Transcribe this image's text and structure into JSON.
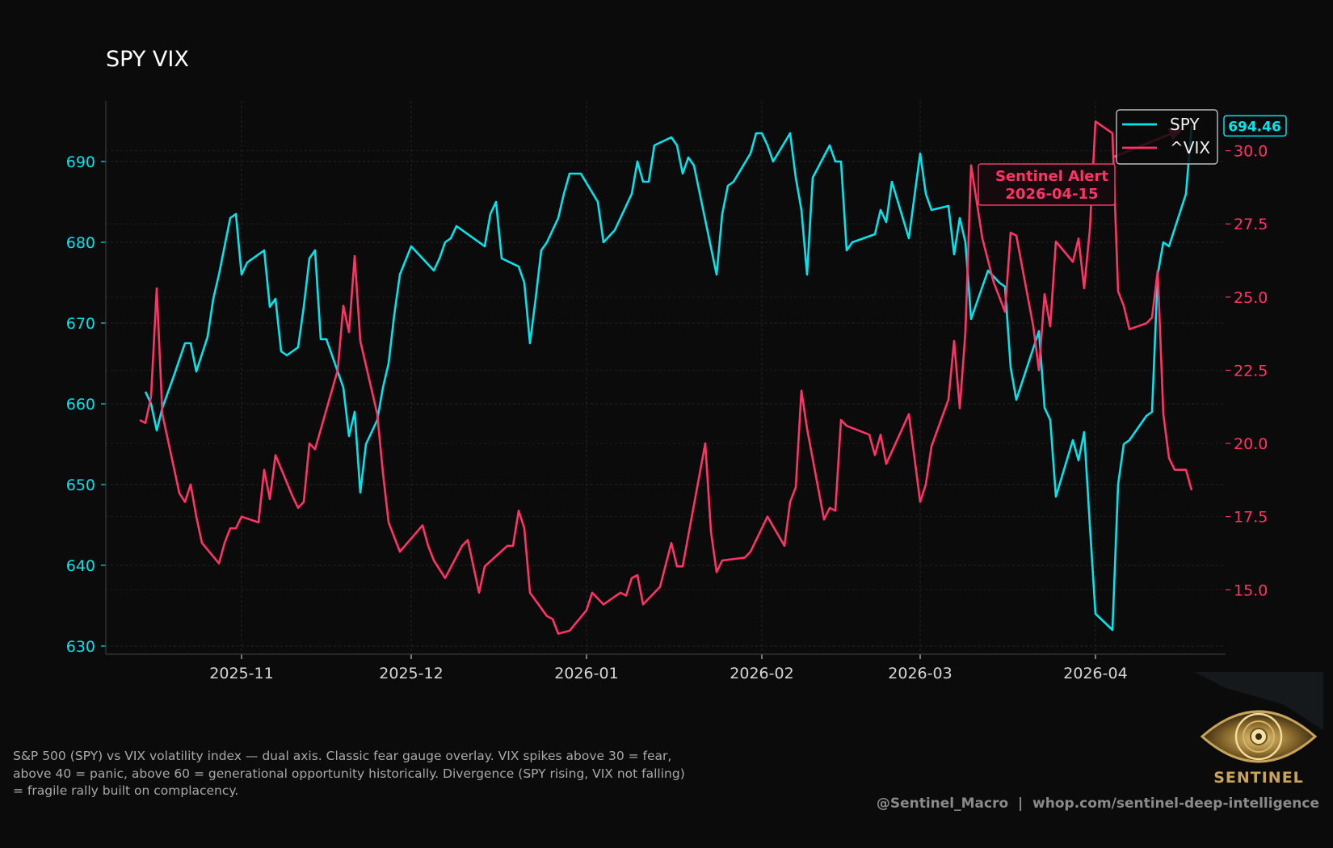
{
  "caption": "S&P 500 (SPY) vs VIX volatility index — dual axis. Classic fear gauge overlay. VIX spikes above 30 = fear, above 40 = panic, above 60 = generational opportunity historically. Divergence (SPY rising, VIX not falling) = fragile rally built on complacency.",
  "attribution": "@Sentinel_Macro  |  whop.com/sentinel-deep-intelligence",
  "logo": {
    "icon": "eye-emblem-icon",
    "wordmark": "SENTINEL"
  },
  "chart_data": {
    "type": "line",
    "title": "SPY VIX",
    "xlabel": "",
    "ylabel_left": "",
    "ylabel_right": "",
    "grid": true,
    "legend_position": "top-right",
    "x_range": [
      "2025-10-08",
      "2026-04-24"
    ],
    "x_ticks": [
      "2025-11",
      "2025-12",
      "2026-01",
      "2026-02",
      "2026-03",
      "2026-04"
    ],
    "y_left": {
      "min": 629,
      "max": 697.5,
      "ticks": [
        630,
        640,
        650,
        660,
        670,
        680,
        690
      ],
      "color": "#00e5ee"
    },
    "y_right": {
      "min": 12.8,
      "max": 31.7,
      "ticks": [
        15.0,
        17.5,
        20.0,
        22.5,
        25.0,
        27.5,
        30.0
      ],
      "color": "#ff3366"
    },
    "series": [
      {
        "name": "SPY",
        "axis": "left",
        "color": "#00e5ee",
        "points": [
          [
            "2025-10-15",
            661.5
          ],
          [
            "2025-10-16",
            660.0
          ],
          [
            "2025-10-17",
            656.7
          ],
          [
            "2025-10-18",
            659.5
          ],
          [
            "2025-10-20",
            663.4
          ],
          [
            "2025-10-22",
            667.5
          ],
          [
            "2025-10-23",
            667.5
          ],
          [
            "2025-10-24",
            664.0
          ],
          [
            "2025-10-26",
            668.3
          ],
          [
            "2025-10-27",
            673.0
          ],
          [
            "2025-10-28",
            676.0
          ],
          [
            "2025-10-29",
            679.5
          ],
          [
            "2025-10-30",
            683.0
          ],
          [
            "2025-10-31",
            683.5
          ],
          [
            "2025-11-01",
            676.0
          ],
          [
            "2025-11-02",
            677.5
          ],
          [
            "2025-11-03",
            678.0
          ],
          [
            "2025-11-05",
            679.0
          ],
          [
            "2025-11-06",
            672.0
          ],
          [
            "2025-11-07",
            673.0
          ],
          [
            "2025-11-08",
            666.5
          ],
          [
            "2025-11-09",
            666.0
          ],
          [
            "2025-11-11",
            667.0
          ],
          [
            "2025-11-12",
            672.0
          ],
          [
            "2025-11-13",
            678.0
          ],
          [
            "2025-11-14",
            679.0
          ],
          [
            "2025-11-15",
            668.0
          ],
          [
            "2025-11-16",
            668.0
          ],
          [
            "2025-11-17",
            666.0
          ],
          [
            "2025-11-19",
            662.0
          ],
          [
            "2025-11-20",
            656.0
          ],
          [
            "2025-11-21",
            659.0
          ],
          [
            "2025-11-22",
            649.0
          ],
          [
            "2025-11-23",
            655.0
          ],
          [
            "2025-11-25",
            658.0
          ],
          [
            "2025-11-26",
            662.0
          ],
          [
            "2025-11-27",
            665.0
          ],
          [
            "2025-11-28",
            671.0
          ],
          [
            "2025-11-29",
            676.0
          ],
          [
            "2025-12-01",
            679.5
          ],
          [
            "2025-12-03",
            678.0
          ],
          [
            "2025-12-05",
            676.5
          ],
          [
            "2025-12-06",
            678.0
          ],
          [
            "2025-12-07",
            680.0
          ],
          [
            "2025-12-08",
            680.5
          ],
          [
            "2025-12-09",
            682.0
          ],
          [
            "2025-12-10",
            681.5
          ],
          [
            "2025-12-14",
            679.5
          ],
          [
            "2025-12-15",
            683.5
          ],
          [
            "2025-12-16",
            685.0
          ],
          [
            "2025-12-17",
            678.0
          ],
          [
            "2025-12-20",
            677.0
          ],
          [
            "2025-12-21",
            675.0
          ],
          [
            "2025-12-22",
            667.5
          ],
          [
            "2025-12-23",
            673.0
          ],
          [
            "2025-12-24",
            679.0
          ],
          [
            "2025-12-25",
            680.0
          ],
          [
            "2025-12-27",
            683.0
          ],
          [
            "2025-12-28",
            686.0
          ],
          [
            "2025-12-29",
            688.5
          ],
          [
            "2025-12-31",
            688.5
          ],
          [
            "2026-01-03",
            685.0
          ],
          [
            "2026-01-04",
            680.0
          ],
          [
            "2026-01-06",
            681.5
          ],
          [
            "2026-01-09",
            686.0
          ],
          [
            "2026-01-10",
            690.0
          ],
          [
            "2026-01-11",
            687.5
          ],
          [
            "2026-01-12",
            687.5
          ],
          [
            "2026-01-13",
            692.0
          ],
          [
            "2026-01-16",
            693.0
          ],
          [
            "2026-01-17",
            692.0
          ],
          [
            "2026-01-18",
            688.5
          ],
          [
            "2026-01-19",
            690.5
          ],
          [
            "2026-01-20",
            689.5
          ],
          [
            "2026-01-24",
            676.0
          ],
          [
            "2026-01-25",
            683.5
          ],
          [
            "2026-01-26",
            687.0
          ],
          [
            "2026-01-27",
            687.5
          ],
          [
            "2026-01-30",
            691.0
          ],
          [
            "2026-01-31",
            693.5
          ],
          [
            "2026-02-01",
            693.5
          ],
          [
            "2026-02-02",
            692.0
          ],
          [
            "2026-02-03",
            690.0
          ],
          [
            "2026-02-06",
            693.5
          ],
          [
            "2026-02-07",
            688.0
          ],
          [
            "2026-02-08",
            684.0
          ],
          [
            "2026-02-09",
            676.0
          ],
          [
            "2026-02-10",
            688.0
          ],
          [
            "2026-02-13",
            692.0
          ],
          [
            "2026-02-14",
            690.0
          ],
          [
            "2026-02-15",
            690.0
          ],
          [
            "2026-02-16",
            679.0
          ],
          [
            "2026-02-17",
            680.0
          ],
          [
            "2026-02-21",
            681.0
          ],
          [
            "2026-02-22",
            684.0
          ],
          [
            "2026-02-23",
            682.5
          ],
          [
            "2026-02-24",
            687.5
          ],
          [
            "2026-02-27",
            680.5
          ],
          [
            "2026-03-01",
            691.0
          ],
          [
            "2026-03-02",
            686.0
          ],
          [
            "2026-03-03",
            684.0
          ],
          [
            "2026-03-06",
            684.5
          ],
          [
            "2026-03-07",
            678.5
          ],
          [
            "2026-03-08",
            683.0
          ],
          [
            "2026-03-09",
            680.0
          ],
          [
            "2026-03-10",
            670.5
          ],
          [
            "2026-03-13",
            676.5
          ],
          [
            "2026-03-15",
            675.0
          ],
          [
            "2026-03-16",
            674.5
          ],
          [
            "2026-03-17",
            664.5
          ],
          [
            "2026-03-18",
            660.5
          ],
          [
            "2026-03-22",
            669.0
          ],
          [
            "2026-03-23",
            659.5
          ],
          [
            "2026-03-24",
            658.0
          ],
          [
            "2026-03-25",
            648.5
          ],
          [
            "2026-03-28",
            655.5
          ],
          [
            "2026-03-29",
            653.0
          ],
          [
            "2026-03-30",
            656.5
          ],
          [
            "2026-03-31",
            645.0
          ],
          [
            "2026-04-01",
            634.0
          ],
          [
            "2026-04-04",
            632.0
          ],
          [
            "2026-04-05",
            650.0
          ],
          [
            "2026-04-06",
            655.0
          ],
          [
            "2026-04-07",
            655.5
          ],
          [
            "2026-04-10",
            658.5
          ],
          [
            "2026-04-11",
            659.0
          ],
          [
            "2026-04-12",
            676.0
          ],
          [
            "2026-04-13",
            680.0
          ],
          [
            "2026-04-14",
            679.5
          ],
          [
            "2026-04-17",
            686.0
          ],
          [
            "2026-04-18",
            694.46
          ]
        ]
      },
      {
        "name": "^VIX",
        "axis": "right",
        "color": "#ff3366",
        "points": [
          [
            "2025-10-14",
            20.8
          ],
          [
            "2025-10-15",
            20.7
          ],
          [
            "2025-10-16",
            21.6
          ],
          [
            "2025-10-17",
            25.3
          ],
          [
            "2025-10-18",
            21.0
          ],
          [
            "2025-10-21",
            18.3
          ],
          [
            "2025-10-22",
            18.0
          ],
          [
            "2025-10-23",
            18.6
          ],
          [
            "2025-10-24",
            17.5
          ],
          [
            "2025-10-25",
            16.6
          ],
          [
            "2025-10-28",
            15.9
          ],
          [
            "2025-10-29",
            16.6
          ],
          [
            "2025-10-30",
            17.1
          ],
          [
            "2025-10-31",
            17.1
          ],
          [
            "2025-11-01",
            17.5
          ],
          [
            "2025-11-04",
            17.3
          ],
          [
            "2025-11-05",
            19.1
          ],
          [
            "2025-11-06",
            18.1
          ],
          [
            "2025-11-07",
            19.6
          ],
          [
            "2025-11-10",
            18.2
          ],
          [
            "2025-11-11",
            17.8
          ],
          [
            "2025-11-12",
            18.0
          ],
          [
            "2025-11-13",
            20.0
          ],
          [
            "2025-11-14",
            19.8
          ],
          [
            "2025-11-18",
            22.5
          ],
          [
            "2025-11-19",
            24.7
          ],
          [
            "2025-11-20",
            23.8
          ],
          [
            "2025-11-21",
            26.4
          ],
          [
            "2025-11-22",
            23.5
          ],
          [
            "2025-11-25",
            21.0
          ],
          [
            "2025-11-26",
            19.0
          ],
          [
            "2025-11-27",
            17.3
          ],
          [
            "2025-11-29",
            16.3
          ],
          [
            "2025-12-03",
            17.2
          ],
          [
            "2025-12-04",
            16.5
          ],
          [
            "2025-12-05",
            16.0
          ],
          [
            "2025-12-07",
            15.4
          ],
          [
            "2025-12-10",
            16.5
          ],
          [
            "2025-12-11",
            16.7
          ],
          [
            "2025-12-13",
            14.9
          ],
          [
            "2025-12-14",
            15.8
          ],
          [
            "2025-12-18",
            16.5
          ],
          [
            "2025-12-19",
            16.5
          ],
          [
            "2025-12-20",
            17.7
          ],
          [
            "2025-12-21",
            17.1
          ],
          [
            "2025-12-22",
            14.9
          ],
          [
            "2025-12-25",
            14.1
          ],
          [
            "2025-12-26",
            14.0
          ],
          [
            "2025-12-27",
            13.5
          ],
          [
            "2025-12-29",
            13.6
          ],
          [
            "2026-01-01",
            14.3
          ],
          [
            "2026-01-02",
            14.9
          ],
          [
            "2026-01-04",
            14.5
          ],
          [
            "2026-01-07",
            14.9
          ],
          [
            "2026-01-08",
            14.8
          ],
          [
            "2026-01-09",
            15.4
          ],
          [
            "2026-01-10",
            15.5
          ],
          [
            "2026-01-11",
            14.5
          ],
          [
            "2026-01-14",
            15.1
          ],
          [
            "2026-01-16",
            16.6
          ],
          [
            "2026-01-17",
            15.8
          ],
          [
            "2026-01-18",
            15.8
          ],
          [
            "2026-01-22",
            20.0
          ],
          [
            "2026-01-23",
            17.0
          ],
          [
            "2026-01-24",
            15.6
          ],
          [
            "2026-01-25",
            16.0
          ],
          [
            "2026-01-29",
            16.1
          ],
          [
            "2026-01-30",
            16.3
          ],
          [
            "2026-02-02",
            17.5
          ],
          [
            "2026-02-05",
            16.5
          ],
          [
            "2026-02-06",
            18.0
          ],
          [
            "2026-02-07",
            18.5
          ],
          [
            "2026-02-08",
            21.8
          ],
          [
            "2026-02-09",
            20.5
          ],
          [
            "2026-02-12",
            17.4
          ],
          [
            "2026-02-13",
            17.8
          ],
          [
            "2026-02-14",
            17.7
          ],
          [
            "2026-02-15",
            20.8
          ],
          [
            "2026-02-16",
            20.6
          ],
          [
            "2026-02-20",
            20.3
          ],
          [
            "2026-02-21",
            19.6
          ],
          [
            "2026-02-22",
            20.3
          ],
          [
            "2026-02-23",
            19.3
          ],
          [
            "2026-02-27",
            21.0
          ],
          [
            "2026-03-01",
            18.0
          ],
          [
            "2026-03-02",
            18.6
          ],
          [
            "2026-03-03",
            19.9
          ],
          [
            "2026-03-06",
            21.5
          ],
          [
            "2026-03-07",
            23.5
          ],
          [
            "2026-03-08",
            21.2
          ],
          [
            "2026-03-09",
            23.8
          ],
          [
            "2026-03-10",
            29.5
          ],
          [
            "2026-03-12",
            27.0
          ],
          [
            "2026-03-14",
            25.5
          ],
          [
            "2026-03-16",
            24.5
          ],
          [
            "2026-03-17",
            27.2
          ],
          [
            "2026-03-18",
            27.1
          ],
          [
            "2026-03-21",
            24.0
          ],
          [
            "2026-03-22",
            22.5
          ],
          [
            "2026-03-23",
            25.1
          ],
          [
            "2026-03-24",
            24.0
          ],
          [
            "2026-03-25",
            26.9
          ],
          [
            "2026-03-28",
            26.2
          ],
          [
            "2026-03-29",
            27.0
          ],
          [
            "2026-03-30",
            25.3
          ],
          [
            "2026-03-31",
            27.3
          ],
          [
            "2026-04-01",
            31.0
          ],
          [
            "2026-04-04",
            30.6
          ],
          [
            "2026-04-05",
            25.2
          ],
          [
            "2026-04-06",
            24.7
          ],
          [
            "2026-04-07",
            23.9
          ],
          [
            "2026-04-10",
            24.1
          ],
          [
            "2026-04-11",
            24.3
          ],
          [
            "2026-04-12",
            25.9
          ],
          [
            "2026-04-13",
            21.0
          ],
          [
            "2026-04-14",
            19.5
          ],
          [
            "2026-04-15",
            19.1
          ],
          [
            "2026-04-17",
            19.1
          ],
          [
            "2026-04-18",
            18.4
          ]
        ]
      }
    ],
    "annotation": {
      "text_lines": [
        "Sentinel Alert",
        "2026-04-15"
      ],
      "arrow_from_date": "2026-04-04",
      "arrow_from_value": 690.5,
      "arrow_to_date": "2026-04-18",
      "arrow_to_value": 694.46,
      "color": "#ff3366"
    },
    "last_value_badge": {
      "label": "694.46",
      "color": "#00e5ee"
    }
  }
}
